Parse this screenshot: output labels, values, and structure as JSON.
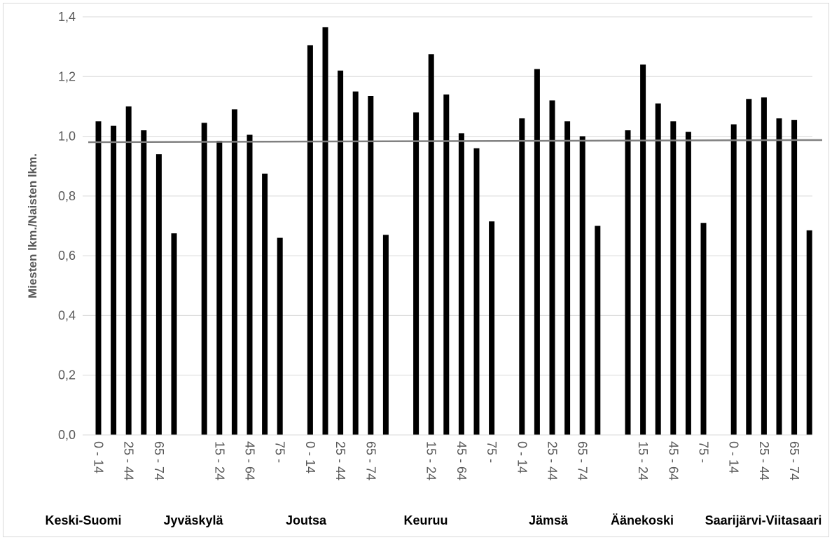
{
  "chart_data": {
    "type": "bar",
    "xlabel": "",
    "ylabel": "Miesten lkm./Naisten lkm.",
    "ylim": [
      0,
      1.4
    ],
    "y_ticks": [
      "0,0",
      "0,2",
      "0,4",
      "0,6",
      "0,8",
      "1,0",
      "1,2",
      "1,4"
    ],
    "grid": true,
    "reference_line": 0.985,
    "colors": {
      "bars": "#000000",
      "grid": "#d9d9d9",
      "reference": "#808080"
    },
    "groups": [
      {
        "label": "Keski-Suomi",
        "categories": [
          "0 - 14",
          "15 - 24",
          "25 - 44",
          "45 - 64",
          "65 - 74",
          "75 -"
        ],
        "tick_labels": [
          "0 - 14",
          "",
          "25 - 44",
          "",
          "65 - 74",
          ""
        ],
        "values": [
          1.05,
          1.035,
          1.1,
          1.02,
          0.94,
          0.675
        ]
      },
      {
        "label": "Jyväskylä",
        "categories": [
          "0 - 14",
          "15 - 24",
          "25 - 44",
          "45 - 64",
          "65 - 74",
          "75 -"
        ],
        "tick_labels": [
          "",
          "15 - 24",
          "",
          "45 - 64",
          "",
          "75 -"
        ],
        "values": [
          1.045,
          0.985,
          1.09,
          1.005,
          0.875,
          0.66
        ]
      },
      {
        "label": "Joutsa",
        "categories": [
          "0 - 14",
          "15 - 24",
          "25 - 44",
          "45 - 64",
          "65 - 74",
          "75 -"
        ],
        "tick_labels": [
          "0 - 14",
          "",
          "25 - 44",
          "",
          "65 - 74",
          ""
        ],
        "values": [
          1.305,
          1.365,
          1.22,
          1.15,
          1.135,
          0.67
        ]
      },
      {
        "label": "Keuruu",
        "categories": [
          "0 - 14",
          "15 - 24",
          "25 - 44",
          "45 - 64",
          "65 - 74",
          "75 -"
        ],
        "tick_labels": [
          "",
          "15 - 24",
          "",
          "45 - 64",
          "",
          "75 -"
        ],
        "values": [
          1.08,
          1.275,
          1.14,
          1.01,
          0.96,
          0.715
        ]
      },
      {
        "label": "Jämsä",
        "categories": [
          "0 - 14",
          "15 - 24",
          "25 - 44",
          "45 - 64",
          "65 - 74",
          "75 -"
        ],
        "tick_labels": [
          "0 - 14",
          "",
          "25 - 44",
          "",
          "65 - 74",
          ""
        ],
        "values": [
          1.06,
          1.225,
          1.12,
          1.05,
          1.0,
          0.7
        ]
      },
      {
        "label": "Äänekoski",
        "categories": [
          "0 - 14",
          "15 - 24",
          "25 - 44",
          "45 - 64",
          "65 - 74",
          "75 -"
        ],
        "tick_labels": [
          "",
          "15 - 24",
          "",
          "45 - 64",
          "",
          "75 -"
        ],
        "values": [
          1.02,
          1.24,
          1.11,
          1.05,
          1.015,
          0.71
        ]
      },
      {
        "label": "Saarijärvi-Viitasaari",
        "categories": [
          "0 - 14",
          "15 - 24",
          "25 - 44",
          "45 - 64",
          "65 - 74",
          "75 -"
        ],
        "tick_labels": [
          "0 - 14",
          "",
          "25 - 44",
          "",
          "65 - 74",
          ""
        ],
        "values": [
          1.04,
          1.125,
          1.13,
          1.06,
          1.055,
          0.685
        ]
      }
    ]
  }
}
